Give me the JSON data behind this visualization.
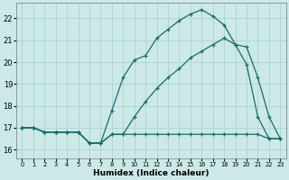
{
  "xlabel": "Humidex (Indice chaleur)",
  "bg_color": "#cce9e7",
  "grid_color": "#aad4d2",
  "line_color": "#1a6b6b",
  "x_values": [
    0,
    1,
    2,
    3,
    4,
    5,
    6,
    7,
    8,
    9,
    10,
    11,
    12,
    13,
    14,
    15,
    16,
    17,
    18,
    19,
    20,
    21,
    22,
    23
  ],
  "series_max": [
    17.0,
    17.0,
    16.8,
    16.8,
    16.8,
    16.8,
    16.3,
    16.3,
    17.8,
    19.3,
    20.1,
    20.3,
    21.1,
    21.5,
    21.9,
    22.2,
    22.4,
    22.1,
    21.7,
    20.8,
    20.7,
    19.3,
    17.5,
    16.5
  ],
  "series_mean": [
    17.0,
    17.0,
    16.8,
    16.8,
    16.8,
    16.8,
    16.3,
    16.3,
    16.7,
    16.7,
    17.5,
    18.2,
    18.8,
    19.3,
    19.7,
    20.2,
    20.5,
    20.8,
    21.1,
    20.8,
    19.9,
    17.5,
    16.5,
    16.5
  ],
  "series_min": [
    17.0,
    17.0,
    16.8,
    16.8,
    16.8,
    16.8,
    16.3,
    16.3,
    16.7,
    16.7,
    16.7,
    16.7,
    16.7,
    16.7,
    16.7,
    16.7,
    16.7,
    16.7,
    16.7,
    16.7,
    16.7,
    16.7,
    16.5,
    16.5
  ],
  "ylim": [
    15.6,
    22.7
  ],
  "yticks": [
    16,
    17,
    18,
    19,
    20,
    21,
    22
  ],
  "xlim": [
    -0.5,
    23.5
  ],
  "xtick_labels": [
    "0",
    "1",
    "2",
    "3",
    "4",
    "5",
    "6",
    "7",
    "8",
    "9",
    "10",
    "11",
    "12",
    "13",
    "14",
    "15",
    "16",
    "17",
    "18",
    "19",
    "20",
    "21",
    "22",
    "23"
  ]
}
